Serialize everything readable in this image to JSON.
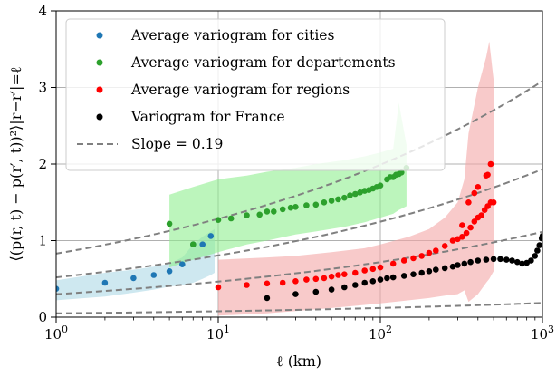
{
  "chart_data": {
    "type": "scatter",
    "xscale": "log",
    "xlim": [
      1,
      1000
    ],
    "ylim": [
      0,
      4
    ],
    "grid": true,
    "legend_position": "top-left",
    "xlabel": "ℓ (km)",
    "ylabel": "⟨(p(r, t) − p(r′, t))²⟩|r−r′|=ℓ",
    "x_ticks": [
      {
        "value": 1,
        "base": "10",
        "exp": "0"
      },
      {
        "value": 10,
        "base": "10",
        "exp": "1"
      },
      {
        "value": 100,
        "base": "10",
        "exp": "2"
      },
      {
        "value": 1000,
        "base": "10",
        "exp": "3"
      }
    ],
    "y_ticks": [
      {
        "value": 0,
        "label": "0"
      },
      {
        "value": 1,
        "label": "1"
      },
      {
        "value": 2,
        "label": "2"
      },
      {
        "value": 3,
        "label": "3"
      },
      {
        "value": 4,
        "label": "4"
      }
    ],
    "series": [
      {
        "name": "Average variogram for cities",
        "color": "#1f77b4",
        "band_color": "#add8e6",
        "points": [
          [
            1.0,
            0.37
          ],
          [
            2.0,
            0.45
          ],
          [
            3.0,
            0.51
          ],
          [
            4.0,
            0.55
          ],
          [
            5.0,
            0.6
          ],
          [
            6.0,
            0.69
          ],
          [
            7.0,
            0.95
          ],
          [
            8.0,
            0.95
          ],
          [
            9.0,
            1.06
          ]
        ],
        "band": {
          "x": [
            1,
            2,
            3,
            4,
            5,
            6,
            7,
            8,
            9,
            9.5
          ],
          "low": [
            0.22,
            0.27,
            0.32,
            0.36,
            0.4,
            0.42,
            0.45,
            0.5,
            0.55,
            0.58
          ],
          "high": [
            0.48,
            0.58,
            0.62,
            0.66,
            0.7,
            0.78,
            0.95,
            1.05,
            1.12,
            1.15
          ]
        }
      },
      {
        "name": "Average variogram for departements",
        "color": "#2ca02c",
        "band_color": "#90ee90",
        "points": [
          [
            5,
            1.22
          ],
          [
            7,
            0.95
          ],
          [
            10,
            1.27
          ],
          [
            12,
            1.29
          ],
          [
            15,
            1.33
          ],
          [
            18,
            1.34
          ],
          [
            20,
            1.38
          ],
          [
            22,
            1.38
          ],
          [
            25,
            1.41
          ],
          [
            28,
            1.43
          ],
          [
            30,
            1.44
          ],
          [
            35,
            1.46
          ],
          [
            40,
            1.47
          ],
          [
            45,
            1.5
          ],
          [
            50,
            1.52
          ],
          [
            55,
            1.54
          ],
          [
            60,
            1.56
          ],
          [
            65,
            1.59
          ],
          [
            70,
            1.61
          ],
          [
            75,
            1.63
          ],
          [
            80,
            1.65
          ],
          [
            85,
            1.66
          ],
          [
            90,
            1.68
          ],
          [
            95,
            1.7
          ],
          [
            100,
            1.72
          ],
          [
            110,
            1.8
          ],
          [
            115,
            1.83
          ],
          [
            120,
            1.83
          ],
          [
            125,
            1.86
          ],
          [
            130,
            1.87
          ],
          [
            135,
            1.89
          ],
          [
            145,
            1.95
          ]
        ],
        "band": {
          "x": [
            5,
            7,
            10,
            15,
            20,
            30,
            40,
            60,
            80,
            100,
            120,
            130,
            145
          ],
          "low": [
            0.65,
            0.75,
            0.85,
            0.95,
            1.0,
            1.08,
            1.12,
            1.18,
            1.24,
            1.3,
            1.35,
            1.4,
            1.45
          ],
          "high": [
            1.6,
            1.7,
            1.8,
            1.85,
            1.9,
            1.95,
            2.0,
            2.05,
            2.1,
            2.15,
            2.2,
            2.8,
            2.25
          ]
        }
      },
      {
        "name": "Average variogram for regions",
        "color": "#ff0000",
        "band_color": "#f4a6a6",
        "points": [
          [
            10,
            0.39
          ],
          [
            15,
            0.42
          ],
          [
            20,
            0.44
          ],
          [
            25,
            0.45
          ],
          [
            30,
            0.47
          ],
          [
            35,
            0.49
          ],
          [
            40,
            0.5
          ],
          [
            45,
            0.51
          ],
          [
            50,
            0.53
          ],
          [
            55,
            0.55
          ],
          [
            60,
            0.56
          ],
          [
            70,
            0.58
          ],
          [
            80,
            0.61
          ],
          [
            90,
            0.63
          ],
          [
            100,
            0.65
          ],
          [
            120,
            0.7
          ],
          [
            140,
            0.74
          ],
          [
            160,
            0.77
          ],
          [
            180,
            0.8
          ],
          [
            200,
            0.84
          ],
          [
            220,
            0.87
          ],
          [
            250,
            0.93
          ],
          [
            280,
            1.0
          ],
          [
            300,
            1.02
          ],
          [
            320,
            1.05
          ],
          [
            340,
            1.1
          ],
          [
            360,
            1.17
          ],
          [
            380,
            1.25
          ],
          [
            400,
            1.3
          ],
          [
            420,
            1.33
          ],
          [
            440,
            1.4
          ],
          [
            460,
            1.45
          ],
          [
            480,
            1.5
          ],
          [
            500,
            1.5
          ],
          [
            320,
            1.2
          ],
          [
            350,
            1.5
          ],
          [
            380,
            1.62
          ],
          [
            400,
            1.7
          ],
          [
            450,
            1.85
          ],
          [
            460,
            1.86
          ],
          [
            480,
            2.0
          ]
        ],
        "band": {
          "x": [
            10,
            20,
            30,
            50,
            80,
            100,
            150,
            200,
            250,
            300,
            330,
            350,
            400,
            450,
            470,
            500
          ],
          "low": [
            0.02,
            0.05,
            0.08,
            0.12,
            0.16,
            0.18,
            0.22,
            0.25,
            0.28,
            0.3,
            0.35,
            0.2,
            0.3,
            0.45,
            0.5,
            0.6
          ],
          "high": [
            0.75,
            0.78,
            0.8,
            0.85,
            0.9,
            0.95,
            1.05,
            1.15,
            1.3,
            1.5,
            1.8,
            2.4,
            3.0,
            3.4,
            3.6,
            3.1
          ]
        }
      },
      {
        "name": "Variogram for France",
        "color": "#000000",
        "points": [
          [
            20,
            0.25
          ],
          [
            30,
            0.3
          ],
          [
            40,
            0.33
          ],
          [
            50,
            0.36
          ],
          [
            60,
            0.39
          ],
          [
            70,
            0.42
          ],
          [
            80,
            0.45
          ],
          [
            90,
            0.47
          ],
          [
            100,
            0.49
          ],
          [
            110,
            0.51
          ],
          [
            120,
            0.52
          ],
          [
            140,
            0.54
          ],
          [
            160,
            0.56
          ],
          [
            180,
            0.58
          ],
          [
            200,
            0.6
          ],
          [
            220,
            0.62
          ],
          [
            250,
            0.64
          ],
          [
            280,
            0.66
          ],
          [
            300,
            0.68
          ],
          [
            330,
            0.7
          ],
          [
            360,
            0.72
          ],
          [
            400,
            0.74
          ],
          [
            450,
            0.75
          ],
          [
            500,
            0.76
          ],
          [
            550,
            0.76
          ],
          [
            600,
            0.75
          ],
          [
            650,
            0.74
          ],
          [
            700,
            0.72
          ],
          [
            750,
            0.7
          ],
          [
            800,
            0.71
          ],
          [
            850,
            0.74
          ],
          [
            900,
            0.8
          ],
          [
            930,
            0.87
          ],
          [
            960,
            0.94
          ],
          [
            990,
            1.03
          ],
          [
            1000,
            1.06
          ]
        ]
      }
    ],
    "slope_lines": {
      "name": "Slope = 0.19",
      "slope": 0.19,
      "color": "#808080",
      "dashed": true,
      "intercepts_at_x1": [
        0.83,
        0.52,
        0.3,
        0.05
      ]
    }
  }
}
